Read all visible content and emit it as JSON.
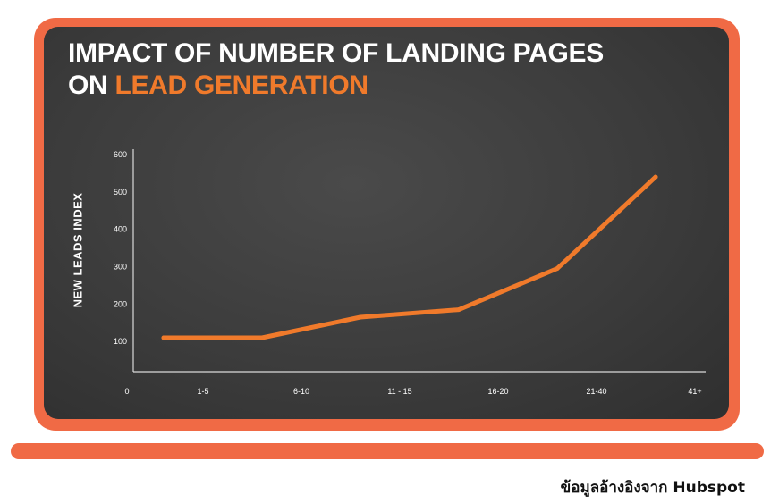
{
  "title_line1": "IMPACT OF NUMBER OF LANDING PAGES",
  "title_line2_prefix": "ON ",
  "title_line2_accent": "LEAD GENERATION",
  "credit": "ข้อมูลอ้างอิงจาก Hubspot",
  "colors": {
    "frame": "#f06a45",
    "accent": "#f07a2b",
    "line": "#f07a2b",
    "panel": "#3f3f3f"
  },
  "chart_data": {
    "type": "line",
    "title": "IMPACT OF NUMBER OF LANDING PAGES ON LEAD GENERATION",
    "xlabel": "",
    "ylabel": "NEW LEADS INDEX",
    "origin_label": "0",
    "categories": [
      "1-5",
      "6-10",
      "11 - 15",
      "16-20",
      "21-40",
      "41+"
    ],
    "yticks": [
      100,
      200,
      300,
      400,
      500,
      600
    ],
    "ylim": [
      0,
      600
    ],
    "grid": false,
    "legend": "none",
    "series": [
      {
        "values": [
          110,
          110,
          165,
          185,
          295,
          540
        ]
      }
    ]
  }
}
